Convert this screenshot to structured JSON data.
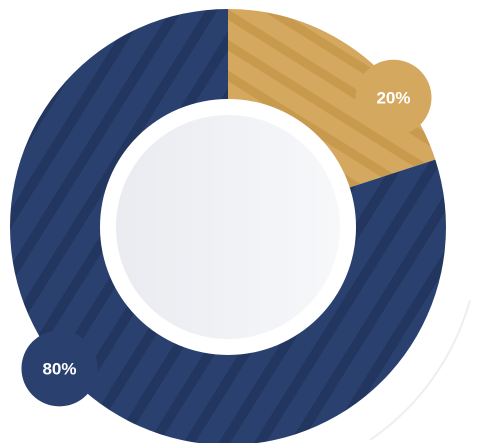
{
  "chart_data": {
    "type": "pie",
    "variant": "donut",
    "title": "",
    "slices": [
      {
        "label": "20%",
        "value": 20,
        "color": "#D4A85F",
        "stripe_color": "#C89A4E"
      },
      {
        "label": "80%",
        "value": 80,
        "color": "#2A4170",
        "stripe_color": "#22365F"
      }
    ],
    "center_color": "#F2F3F6",
    "accent_ring_color": "#ECEEF2",
    "legend": "none",
    "grid": false
  }
}
